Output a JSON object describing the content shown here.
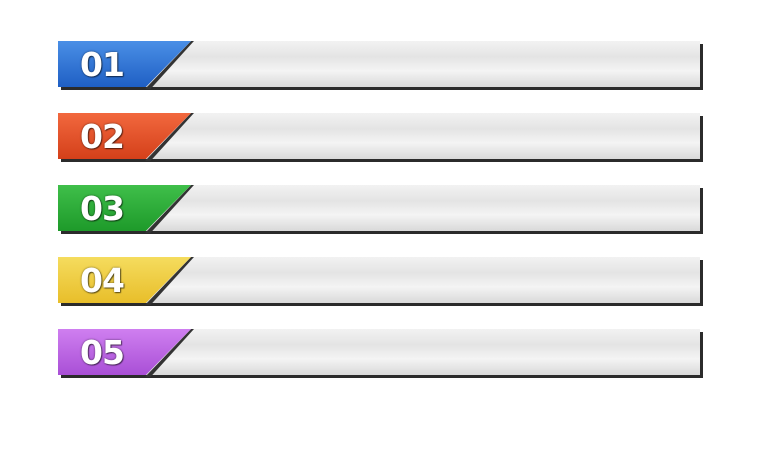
{
  "items": [
    {
      "label": "01",
      "color_top": "#4a8fe6",
      "color_bottom": "#1f5fc4"
    },
    {
      "label": "02",
      "color_top": "#f2683e",
      "color_bottom": "#d4401a"
    },
    {
      "label": "03",
      "color_top": "#3fbf4a",
      "color_bottom": "#1e9a2a"
    },
    {
      "label": "04",
      "color_top": "#f5dc5e",
      "color_bottom": "#e8be2a"
    },
    {
      "label": "05",
      "color_top": "#cf7ff0",
      "color_bottom": "#a94fd6"
    }
  ]
}
